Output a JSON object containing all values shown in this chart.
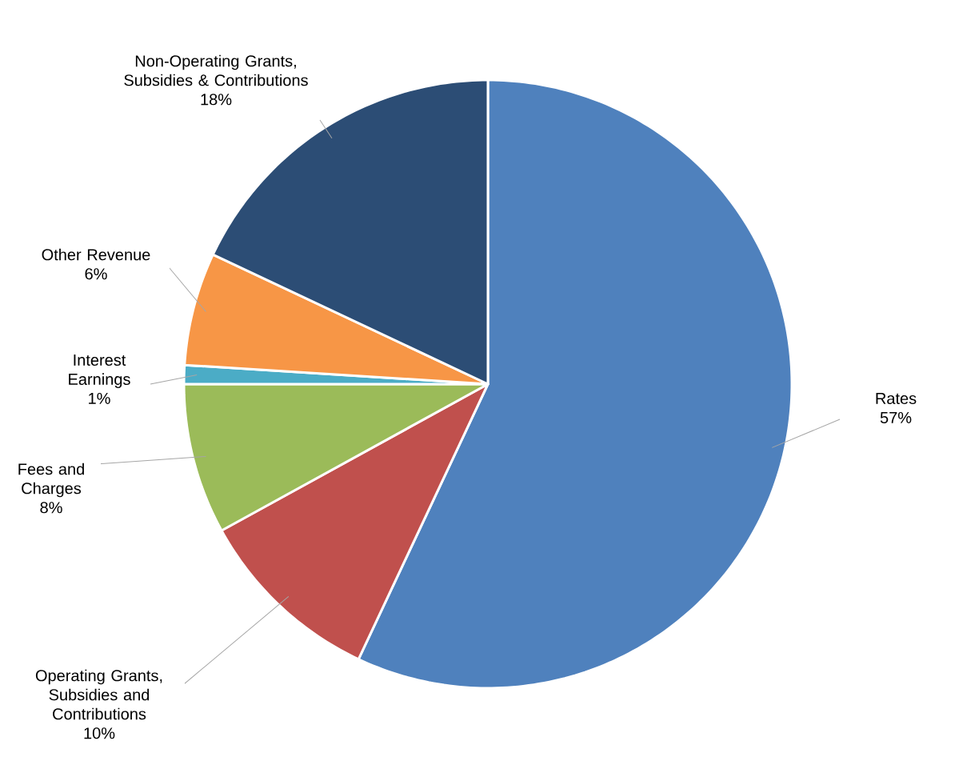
{
  "chart_data": {
    "type": "pie",
    "categories": [
      "Rates",
      "Operating Grants, Subsidies and Contributions",
      "Fees and Charges",
      "Interest Earnings",
      "Other Revenue",
      "Non-Operating Grants, Subsidies & Contributions"
    ],
    "values": [
      57,
      10,
      8,
      1,
      6,
      18
    ],
    "value_labels": [
      "57%",
      "10%",
      "8%",
      "1%",
      "6%",
      "18%"
    ],
    "colors": [
      "#4f81bd",
      "#c0504d",
      "#9bbb59",
      "#4bacc6",
      "#f79646",
      "#2c4d75"
    ]
  }
}
